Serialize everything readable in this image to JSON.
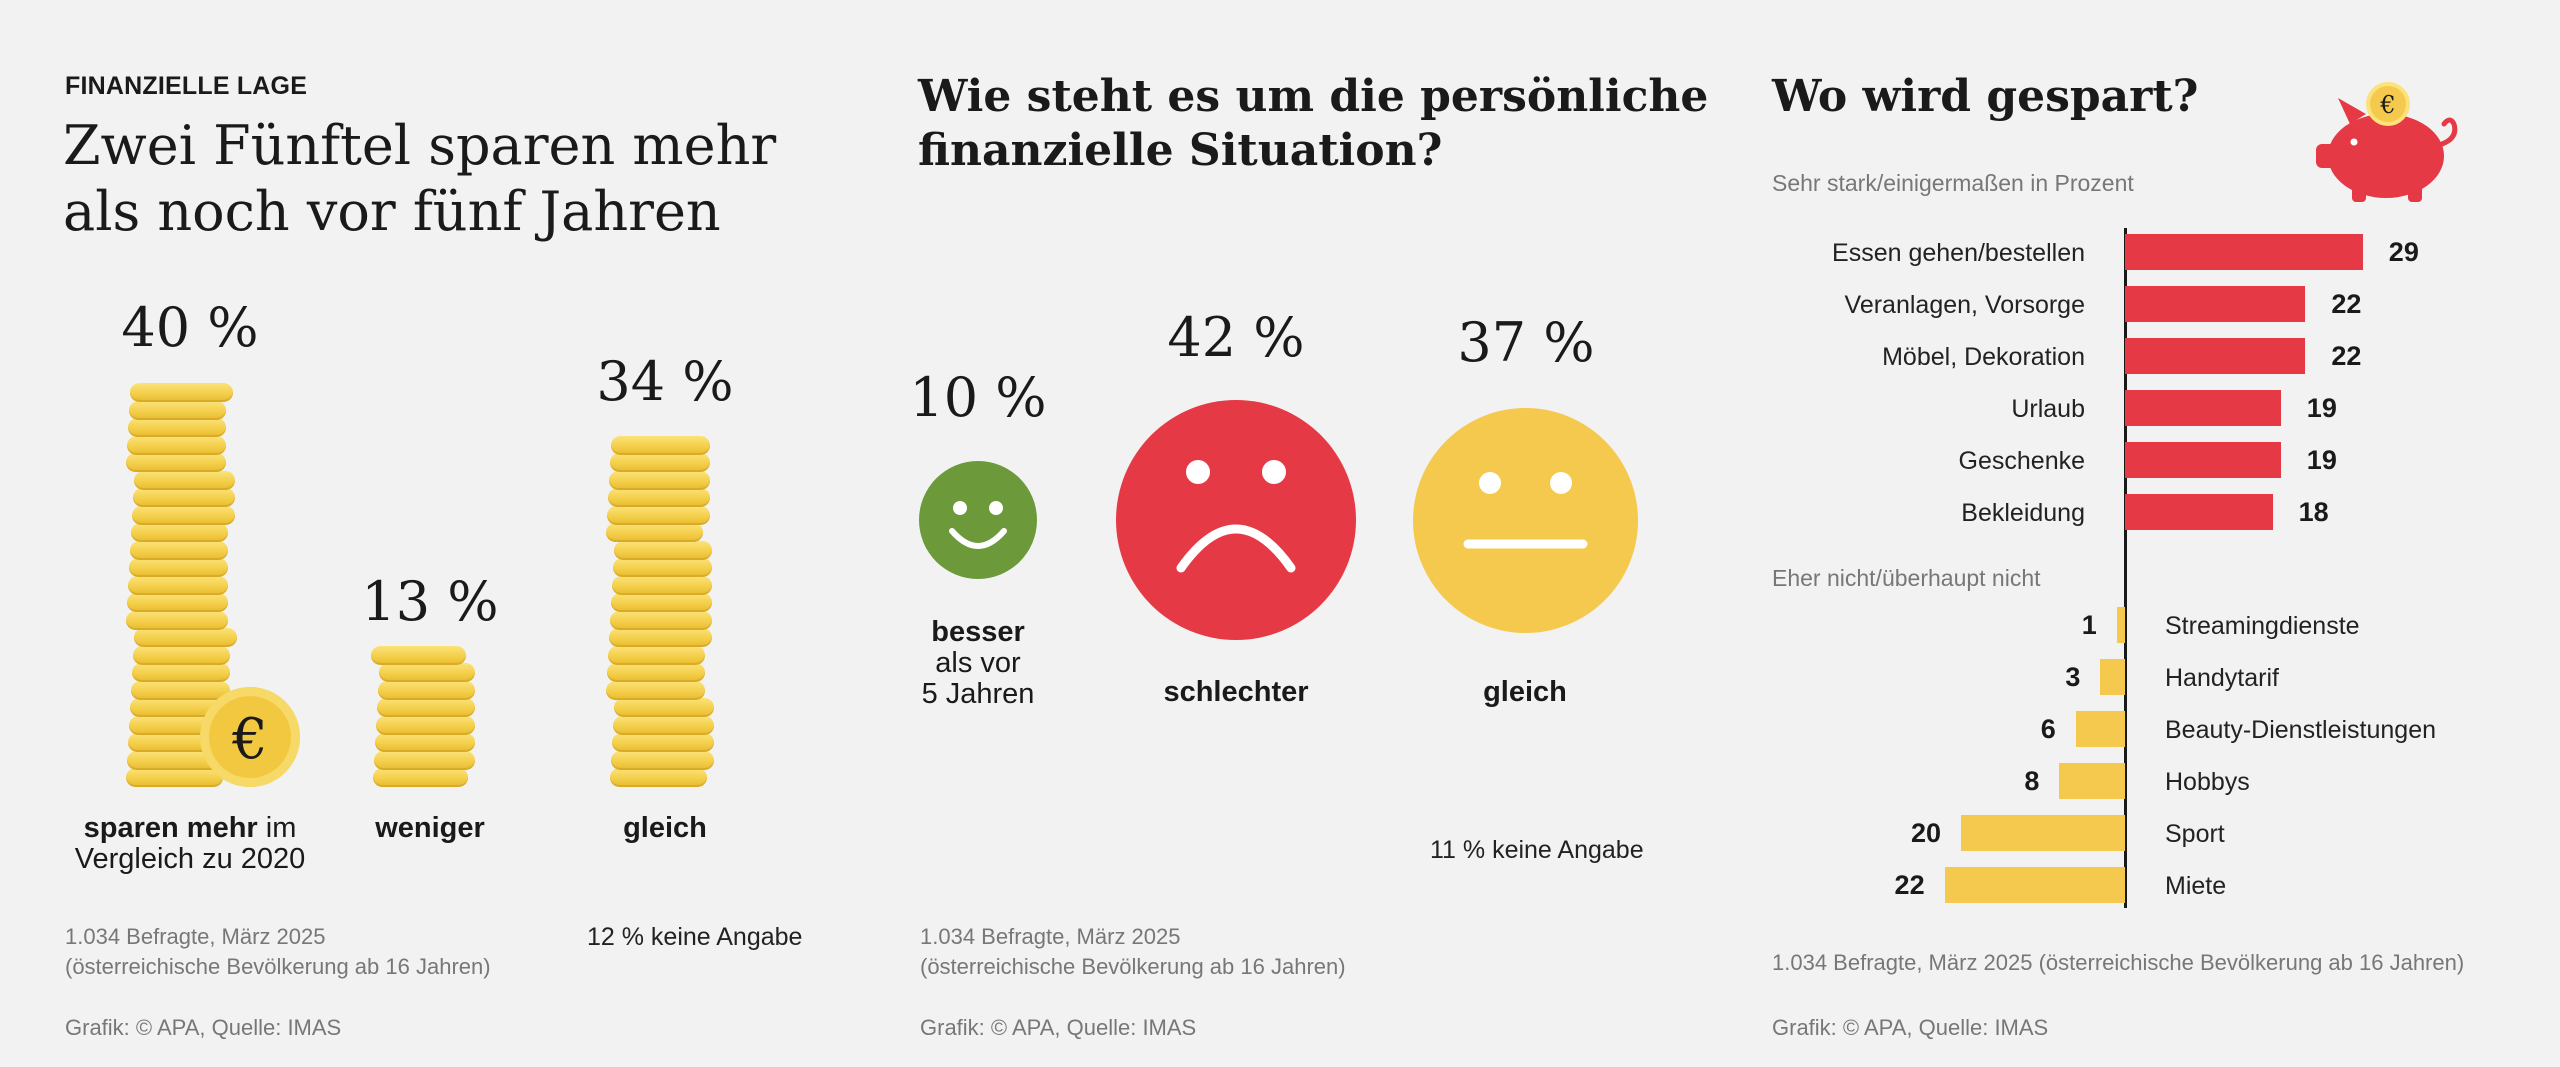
{
  "panel1": {
    "kicker": "FINANZIELLE LAGE",
    "title_line1": "Zwei Fünftel sparen mehr",
    "title_line2": "als noch vor fünf Jahren",
    "bars": [
      {
        "pct_label": "40 %",
        "value": 40,
        "label_bold": "sparen mehr",
        "label_rest": " im",
        "label_line2": "Vergleich zu 2020"
      },
      {
        "pct_label": "13 %",
        "value": 13,
        "label_bold": "weniger"
      },
      {
        "pct_label": "34 %",
        "value": 34,
        "label_bold": "gleich"
      }
    ],
    "no_answer": "12 % keine Angabe",
    "note_line1": "1.034 Befragte, März 2025",
    "note_line2": "(österreichische Bevölkerung ab 16 Jahren)",
    "credit": "Grafik: © APA, Quelle: IMAS",
    "euro_symbol": "€"
  },
  "panel2": {
    "title_line1": "Wie steht es um die persönliche",
    "title_line2": "finanzielle Situation?",
    "items": [
      {
        "pct_label": "10 %",
        "value": 10,
        "label_bold": "besser",
        "label_line2": "als vor",
        "label_line3": "5 Jahren",
        "color": "#6c9a3a",
        "face": "smile"
      },
      {
        "pct_label": "42 %",
        "value": 42,
        "label_bold": "schlechter",
        "color": "#e63946",
        "face": "sad"
      },
      {
        "pct_label": "37 %",
        "value": 37,
        "label_bold": "gleich",
        "color": "#f5c94e",
        "face": "neutral"
      }
    ],
    "no_answer": "11 % keine Angabe",
    "note_line1": "1.034 Befragte, März 2025",
    "note_line2": "(österreichische Bevölkerung ab 16 Jahren)",
    "credit": "Grafik: © APA, Quelle: IMAS"
  },
  "panel3": {
    "title": "Wo wird gespart?",
    "top_group_label": "Sehr stark/einigermaßen in Prozent",
    "bottom_group_label": "Eher nicht/überhaupt nicht",
    "note": "1.034 Befragte, März 2025 (österreichische Bevölkerung ab 16 Jahren)",
    "credit": "Grafik: © APA, Quelle: IMAS",
    "euro_symbol": "€",
    "colors": {
      "positive": "#e63946",
      "negative": "#f5c94e"
    }
  },
  "chart_data": [
    {
      "type": "bar",
      "categories": [
        "sparen mehr im Vergleich zu 2020",
        "weniger",
        "gleich"
      ],
      "values": [
        40,
        13,
        34
      ],
      "unit": "%",
      "annotations": [
        "12 % keine Angabe"
      ]
    },
    {
      "type": "bar",
      "title": "Wie steht es um die persönliche finanzielle Situation?",
      "categories": [
        "besser als vor 5 Jahren",
        "schlechter",
        "gleich"
      ],
      "values": [
        10,
        42,
        37
      ],
      "unit": "%",
      "annotations": [
        "11 % keine Angabe"
      ]
    },
    {
      "type": "bar",
      "title": "Wo wird gespart?",
      "subtitle": "Sehr stark/einigermaßen in Prozent",
      "categories": [
        "Essen gehen/bestellen",
        "Veranlagen, Vorsorge",
        "Möbel, Dekoration",
        "Urlaub",
        "Geschenke",
        "Bekleidung"
      ],
      "values": [
        29,
        22,
        22,
        19,
        19,
        18
      ]
    },
    {
      "type": "bar",
      "subtitle": "Eher nicht/überhaupt nicht",
      "categories": [
        "Streamingdienste",
        "Handytarif",
        "Beauty-Dienstleistungen",
        "Hobbys",
        "Sport",
        "Miete"
      ],
      "values": [
        1,
        3,
        6,
        8,
        20,
        22
      ]
    }
  ]
}
